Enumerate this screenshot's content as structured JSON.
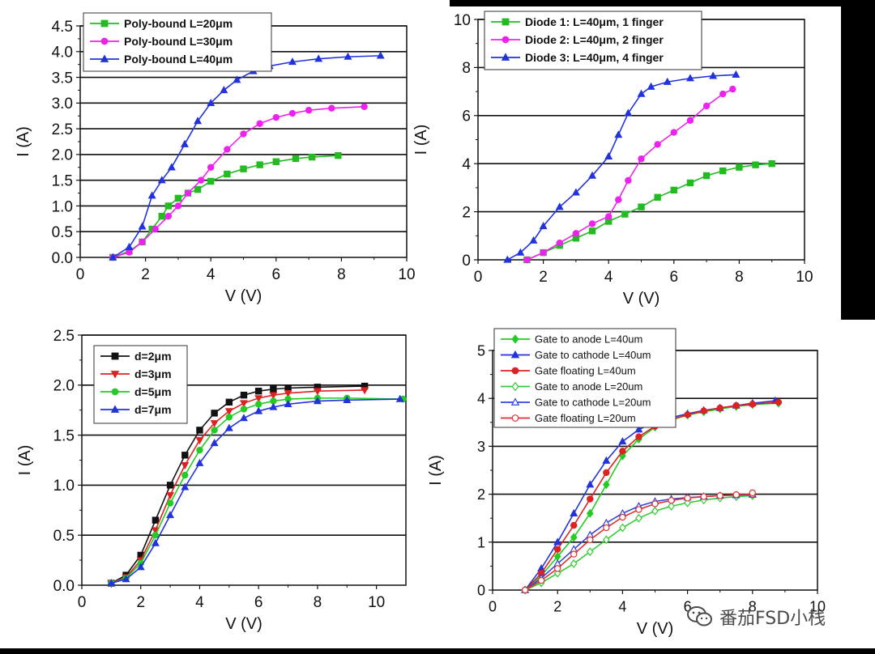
{
  "figure": {
    "watermark": "番茄FSD小栈",
    "panels": [
      {
        "id": "a",
        "legend_style": "bold",
        "xlabel": "V (V)",
        "ylabel": "I (A)",
        "xlim": [
          0,
          10
        ],
        "ylim": [
          0,
          4.5
        ],
        "xticks": [
          "0",
          "2",
          "4",
          "6",
          "8",
          "10"
        ],
        "yticks": [
          "0.0",
          "0.5",
          "1.0",
          "1.5",
          "2.0",
          "2.5",
          "3.0",
          "3.5",
          "4.0",
          "4.5"
        ],
        "series": [
          {
            "name": "Poly-bound L=20μm",
            "color": "#22bb22",
            "marker": "square",
            "x": [
              1.0,
              1.5,
              1.9,
              2.2,
              2.5,
              2.7,
              3.0,
              3.3,
              3.6,
              4.0,
              4.5,
              5.0,
              5.5,
              6.0,
              6.6,
              7.1,
              7.9
            ],
            "y": [
              0.0,
              0.12,
              0.3,
              0.55,
              0.8,
              1.0,
              1.15,
              1.25,
              1.32,
              1.48,
              1.62,
              1.72,
              1.8,
              1.86,
              1.92,
              1.95,
              1.98
            ]
          },
          {
            "name": "Poly-bound L=30μm",
            "color": "#ee22ee",
            "marker": "circle",
            "x": [
              1.0,
              1.5,
              1.9,
              2.3,
              2.7,
              3.0,
              3.3,
              3.7,
              4.0,
              4.5,
              5.0,
              5.5,
              6.0,
              6.5,
              7.0,
              7.7,
              8.7
            ],
            "y": [
              0.0,
              0.1,
              0.3,
              0.55,
              0.8,
              1.0,
              1.25,
              1.5,
              1.75,
              2.1,
              2.4,
              2.6,
              2.72,
              2.8,
              2.86,
              2.9,
              2.93
            ]
          },
          {
            "name": "Poly-bound L=40μm",
            "color": "#2233dd",
            "marker": "triangle",
            "x": [
              1.0,
              1.5,
              1.9,
              2.2,
              2.5,
              2.8,
              3.2,
              3.6,
              4.0,
              4.4,
              4.8,
              5.3,
              5.8,
              6.5,
              7.3,
              8.2,
              9.2
            ],
            "y": [
              0.0,
              0.2,
              0.6,
              1.2,
              1.5,
              1.75,
              2.2,
              2.65,
              3.0,
              3.25,
              3.45,
              3.62,
              3.72,
              3.8,
              3.86,
              3.9,
              3.92
            ]
          }
        ]
      },
      {
        "id": "b",
        "legend_style": "bold",
        "xlabel": "V (V)",
        "ylabel": "I (A)",
        "xlim": [
          0,
          10
        ],
        "ylim": [
          0,
          10
        ],
        "xticks": [
          "0",
          "2",
          "4",
          "6",
          "8",
          "10"
        ],
        "yticks": [
          "0",
          "2",
          "4",
          "6",
          "8",
          "10"
        ],
        "series": [
          {
            "name": "Diode 1: L=40μm, 1 finger",
            "color": "#22bb22",
            "marker": "square",
            "x": [
              1.5,
              2.0,
              2.5,
              3.0,
              3.5,
              4.0,
              4.5,
              5.0,
              5.5,
              6.0,
              6.5,
              7.0,
              7.5,
              8.0,
              8.5,
              9.0
            ],
            "y": [
              0.0,
              0.3,
              0.6,
              0.9,
              1.2,
              1.6,
              1.9,
              2.2,
              2.6,
              2.9,
              3.2,
              3.5,
              3.7,
              3.85,
              3.95,
              4.0
            ]
          },
          {
            "name": "Diode 2: L=40μm, 2 finger",
            "color": "#ee22ee",
            "marker": "circle",
            "x": [
              1.5,
              2.0,
              2.5,
              3.0,
              3.5,
              4.0,
              4.3,
              4.6,
              5.0,
              5.5,
              6.0,
              6.5,
              7.0,
              7.5,
              7.8
            ],
            "y": [
              0.0,
              0.3,
              0.7,
              1.1,
              1.5,
              1.8,
              2.5,
              3.3,
              4.2,
              4.8,
              5.3,
              5.8,
              6.4,
              6.9,
              7.1
            ]
          },
          {
            "name": "Diode 3: L=40μm, 4 finger",
            "color": "#2233dd",
            "marker": "triangle",
            "x": [
              0.9,
              1.3,
              1.7,
              2.0,
              2.5,
              3.0,
              3.5,
              4.0,
              4.3,
              4.6,
              5.0,
              5.3,
              5.8,
              6.5,
              7.2,
              7.9
            ],
            "y": [
              0.0,
              0.3,
              0.8,
              1.4,
              2.2,
              2.8,
              3.5,
              4.3,
              5.2,
              6.1,
              6.9,
              7.2,
              7.4,
              7.55,
              7.65,
              7.7
            ]
          }
        ]
      },
      {
        "id": "c",
        "legend_style": "bold",
        "xlabel": "V (V)",
        "ylabel": "I (A)",
        "xlim": [
          0,
          11
        ],
        "ylim": [
          0,
          2.5
        ],
        "xticks": [
          "0",
          "2",
          "4",
          "6",
          "8",
          "10"
        ],
        "yticks": [
          "0.0",
          "0.5",
          "1.0",
          "1.5",
          "2.0",
          "2.5"
        ],
        "series": [
          {
            "name": "d=2μm",
            "color": "#111111",
            "marker": "square",
            "x": [
              1.0,
              1.5,
              2.0,
              2.5,
              3.0,
              3.5,
              4.0,
              4.5,
              5.0,
              5.5,
              6.0,
              6.5,
              7.0,
              8.0,
              9.6
            ],
            "y": [
              0.02,
              0.1,
              0.3,
              0.65,
              1.0,
              1.3,
              1.55,
              1.72,
              1.83,
              1.9,
              1.94,
              1.96,
              1.97,
              1.98,
              1.99
            ]
          },
          {
            "name": "d=3μm",
            "color": "#dd2222",
            "marker": "triangle-down",
            "x": [
              1.0,
              1.5,
              2.0,
              2.5,
              3.0,
              3.5,
              4.0,
              4.5,
              5.0,
              5.5,
              6.0,
              6.5,
              7.0,
              8.0,
              9.6
            ],
            "y": [
              0.02,
              0.08,
              0.25,
              0.55,
              0.9,
              1.2,
              1.45,
              1.62,
              1.74,
              1.82,
              1.87,
              1.9,
              1.92,
              1.94,
              1.95
            ]
          },
          {
            "name": "d=5μm",
            "color": "#22cc22",
            "marker": "circle",
            "x": [
              1.0,
              1.5,
              2.0,
              2.5,
              3.0,
              3.5,
              4.0,
              4.5,
              5.0,
              5.5,
              6.0,
              6.5,
              7.0,
              8.0,
              9.0,
              10.9
            ],
            "y": [
              0.02,
              0.07,
              0.22,
              0.5,
              0.82,
              1.1,
              1.35,
              1.55,
              1.68,
              1.76,
              1.81,
              1.84,
              1.86,
              1.87,
              1.87,
              1.86
            ]
          },
          {
            "name": "d=7μm",
            "color": "#2233dd",
            "marker": "triangle",
            "x": [
              1.0,
              1.5,
              2.0,
              2.5,
              3.0,
              3.5,
              4.0,
              4.5,
              5.0,
              5.5,
              6.0,
              6.5,
              7.0,
              8.0,
              9.0,
              10.8
            ],
            "y": [
              0.02,
              0.06,
              0.18,
              0.42,
              0.7,
              0.98,
              1.22,
              1.42,
              1.57,
              1.67,
              1.74,
              1.78,
              1.81,
              1.84,
              1.85,
              1.86
            ]
          }
        ]
      },
      {
        "id": "d",
        "legend_style": "regular",
        "xlabel": "V (V)",
        "ylabel": "I (A)",
        "xlim": [
          0,
          10
        ],
        "ylim": [
          0,
          5
        ],
        "xticks": [
          "0",
          "2",
          "4",
          "6",
          "8",
          "10"
        ],
        "yticks": [
          "0",
          "1",
          "2",
          "3",
          "4",
          "5"
        ],
        "series": [
          {
            "name": "Gate to anode L=40um",
            "color": "#22cc22",
            "marker": "diamond",
            "filled": true,
            "x": [
              1.0,
              1.5,
              2.0,
              2.5,
              3.0,
              3.5,
              4.0,
              4.5,
              5.0,
              5.5,
              6.0,
              6.5,
              7.0,
              7.5,
              8.0,
              8.8
            ],
            "y": [
              0.0,
              0.3,
              0.7,
              1.1,
              1.6,
              2.2,
              2.8,
              3.15,
              3.4,
              3.55,
              3.65,
              3.72,
              3.78,
              3.83,
              3.87,
              3.9
            ]
          },
          {
            "name": "Gate to cathode L=40um",
            "color": "#2233dd",
            "marker": "triangle",
            "filled": true,
            "x": [
              1.0,
              1.5,
              2.0,
              2.5,
              3.0,
              3.5,
              4.0,
              4.5,
              5.0,
              5.5,
              6.0,
              6.5,
              7.0,
              7.5,
              8.0,
              8.7
            ],
            "y": [
              0.0,
              0.45,
              1.0,
              1.6,
              2.2,
              2.7,
              3.1,
              3.35,
              3.5,
              3.6,
              3.68,
              3.75,
              3.8,
              3.85,
              3.9,
              3.95
            ]
          },
          {
            "name": "Gate floating L=40um",
            "color": "#dd2222",
            "marker": "circle",
            "filled": true,
            "x": [
              1.0,
              1.5,
              2.0,
              2.5,
              3.0,
              3.5,
              4.0,
              4.5,
              5.0,
              5.5,
              6.0,
              6.5,
              7.0,
              7.5,
              8.0,
              8.8
            ],
            "y": [
              0.0,
              0.35,
              0.85,
              1.35,
              1.9,
              2.45,
              2.9,
              3.2,
              3.42,
              3.56,
              3.66,
              3.74,
              3.8,
              3.85,
              3.88,
              3.92
            ]
          },
          {
            "name": "Gate to anode L=20um",
            "color": "#33cc33",
            "marker": "diamond",
            "filled": false,
            "x": [
              1.0,
              1.5,
              2.0,
              2.5,
              3.0,
              3.5,
              4.0,
              4.5,
              5.0,
              5.5,
              6.0,
              6.5,
              7.0,
              7.5,
              8.0,
              8.0
            ],
            "y": [
              0.0,
              0.15,
              0.35,
              0.55,
              0.8,
              1.05,
              1.3,
              1.5,
              1.65,
              1.75,
              1.82,
              1.88,
              1.92,
              1.95,
              1.97,
              1.98
            ]
          },
          {
            "name": "Gate to cathode L=20um",
            "color": "#3344dd",
            "marker": "triangle",
            "filled": false,
            "x": [
              1.0,
              1.5,
              2.0,
              2.5,
              3.0,
              3.5,
              4.0,
              4.5,
              5.0,
              5.5,
              6.0,
              6.5,
              7.0,
              7.5,
              8.0,
              8.0
            ],
            "y": [
              0.0,
              0.25,
              0.55,
              0.85,
              1.15,
              1.4,
              1.6,
              1.75,
              1.85,
              1.9,
              1.93,
              1.95,
              1.97,
              1.98,
              1.99,
              2.0
            ]
          },
          {
            "name": "Gate floating L=20um",
            "color": "#dd3333",
            "marker": "circle",
            "filled": false,
            "x": [
              1.0,
              1.5,
              2.0,
              2.5,
              3.0,
              3.5,
              4.0,
              4.5,
              5.0,
              5.5,
              6.0,
              6.5,
              7.0,
              7.5,
              8.0,
              8.0
            ],
            "y": [
              0.0,
              0.2,
              0.45,
              0.75,
              1.05,
              1.3,
              1.52,
              1.68,
              1.8,
              1.87,
              1.92,
              1.95,
              1.97,
              1.99,
              2.0,
              2.03
            ]
          }
        ]
      }
    ]
  },
  "chart_data": [
    {
      "type": "line",
      "panel": "a",
      "xlabel": "V (V)",
      "ylabel": "I (A)",
      "xlim": [
        0,
        10
      ],
      "ylim": [
        0,
        4.5
      ],
      "series_names": [
        "Poly-bound L=20μm",
        "Poly-bound L=30μm",
        "Poly-bound L=40μm"
      ],
      "see": "figure.panels.0.series"
    },
    {
      "type": "line",
      "panel": "b",
      "xlabel": "V (V)",
      "ylabel": "I (A)",
      "xlim": [
        0,
        10
      ],
      "ylim": [
        0,
        10
      ],
      "series_names": [
        "Diode 1: L=40μm, 1 finger",
        "Diode 2: L=40μm, 2 finger",
        "Diode 3: L=40μm, 4 finger"
      ],
      "see": "figure.panels.1.series"
    },
    {
      "type": "line",
      "panel": "c",
      "xlabel": "V (V)",
      "ylabel": "I (A)",
      "xlim": [
        0,
        11
      ],
      "ylim": [
        0,
        2.5
      ],
      "series_names": [
        "d=2μm",
        "d=3μm",
        "d=5μm",
        "d=7μm"
      ],
      "see": "figure.panels.2.series"
    },
    {
      "type": "line",
      "panel": "d",
      "xlabel": "V (V)",
      "ylabel": "I (A)",
      "xlim": [
        0,
        10
      ],
      "ylim": [
        0,
        5
      ],
      "series_names": [
        "Gate to anode L=40um",
        "Gate to cathode L=40um",
        "Gate floating L=40um",
        "Gate to anode L=20um",
        "Gate to cathode L=20um",
        "Gate floating L=20um"
      ],
      "see": "figure.panels.3.series"
    }
  ]
}
